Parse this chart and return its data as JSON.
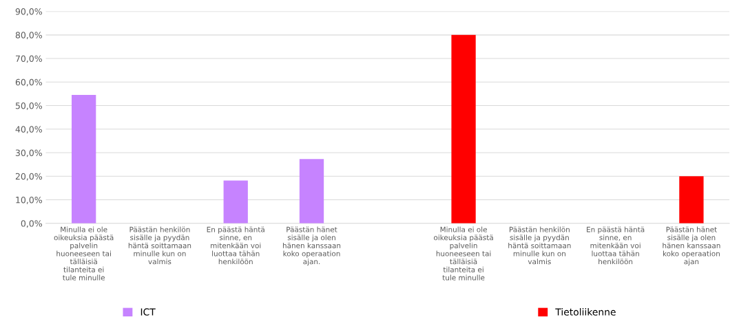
{
  "chart_data": {
    "type": "bar",
    "categories": [
      "Minulla ei ole oikeuksia päästä palvelin huoneeseen tai tälläisiä tilanteita ei tule minulle",
      "Päästän henkilön sisälle ja pyydän häntä soittamaan minulle kun on valmis",
      "En päästä häntä sinne, en mitenkään voi luottaa tähän henkilöön",
      "Päästän hänet sisälle ja olen hänen kanssaan koko operaation ajan.",
      null,
      "Minulla ei ole oikeuksia päästä palvelin huoneeseen tai tälläisiä tilanteita ei tule minulle",
      "Päästän henkilön sisälle ja pyydän häntä soittamaan minulle kun on valmis",
      "En päästä häntä sinne, en mitenkään voi luottaa tähän henkilöön",
      "Päästän hänet sisälle ja olen hänen kanssaan koko operaation ajan"
    ],
    "series": [
      {
        "name": "ICT",
        "color": "#c683ff",
        "values": [
          54.5,
          0,
          18.2,
          27.3,
          null,
          null,
          null,
          null,
          null
        ]
      },
      {
        "name": "Tietoliikenne",
        "color": "#ff0000",
        "values": [
          null,
          null,
          null,
          null,
          null,
          80,
          0,
          0,
          20
        ]
      }
    ],
    "ylim": [
      0,
      90
    ],
    "yticks": [
      {
        "value": 0,
        "label": "0,0%"
      },
      {
        "value": 10,
        "label": "10,0%"
      },
      {
        "value": 20,
        "label": "20,0%"
      },
      {
        "value": 30,
        "label": "30,0%"
      },
      {
        "value": 40,
        "label": "40,0%"
      },
      {
        "value": 50,
        "label": "50,0%"
      },
      {
        "value": 60,
        "label": "60,0%"
      },
      {
        "value": 70,
        "label": "70,0%"
      },
      {
        "value": 80,
        "label": "80,0%"
      },
      {
        "value": 90,
        "label": "90,0%"
      }
    ],
    "grid": "y",
    "legend": "bottom"
  }
}
